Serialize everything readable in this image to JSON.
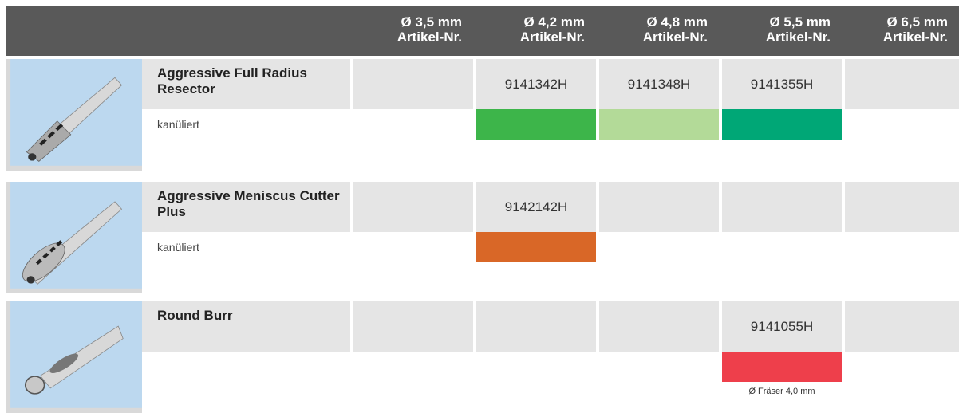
{
  "header": {
    "columns": [
      {
        "diameter": "Ø 3,5 mm",
        "label": "Artikel-Nr."
      },
      {
        "diameter": "Ø 4,2 mm",
        "label": "Artikel-Nr."
      },
      {
        "diameter": "Ø 4,8 mm",
        "label": "Artikel-Nr."
      },
      {
        "diameter": "Ø 5,5 mm",
        "label": "Artikel-Nr."
      },
      {
        "diameter": "Ø 6,5 mm",
        "label": "Artikel-Nr."
      }
    ]
  },
  "rows": [
    {
      "name": "Aggressive Full Radius Resector",
      "note": "kanüliert",
      "cells": [
        null,
        {
          "article": "9141342H",
          "color": "#3db54a"
        },
        {
          "article": "9141348H",
          "color": "#b3da98"
        },
        {
          "article": "9141355H",
          "color": "#00a776"
        },
        null
      ]
    },
    {
      "name": "Aggressive Meniscus Cutter Plus",
      "note": "kanüliert",
      "cells": [
        null,
        {
          "article": "9142142H",
          "color": "#d96727"
        },
        null,
        null,
        null
      ]
    },
    {
      "name": "Round Burr",
      "cells": [
        null,
        null,
        null,
        {
          "article": "9141055H",
          "color": "#ee3f4b",
          "footnote": "Ø Fräser 4,0 mm"
        },
        null
      ]
    }
  ]
}
